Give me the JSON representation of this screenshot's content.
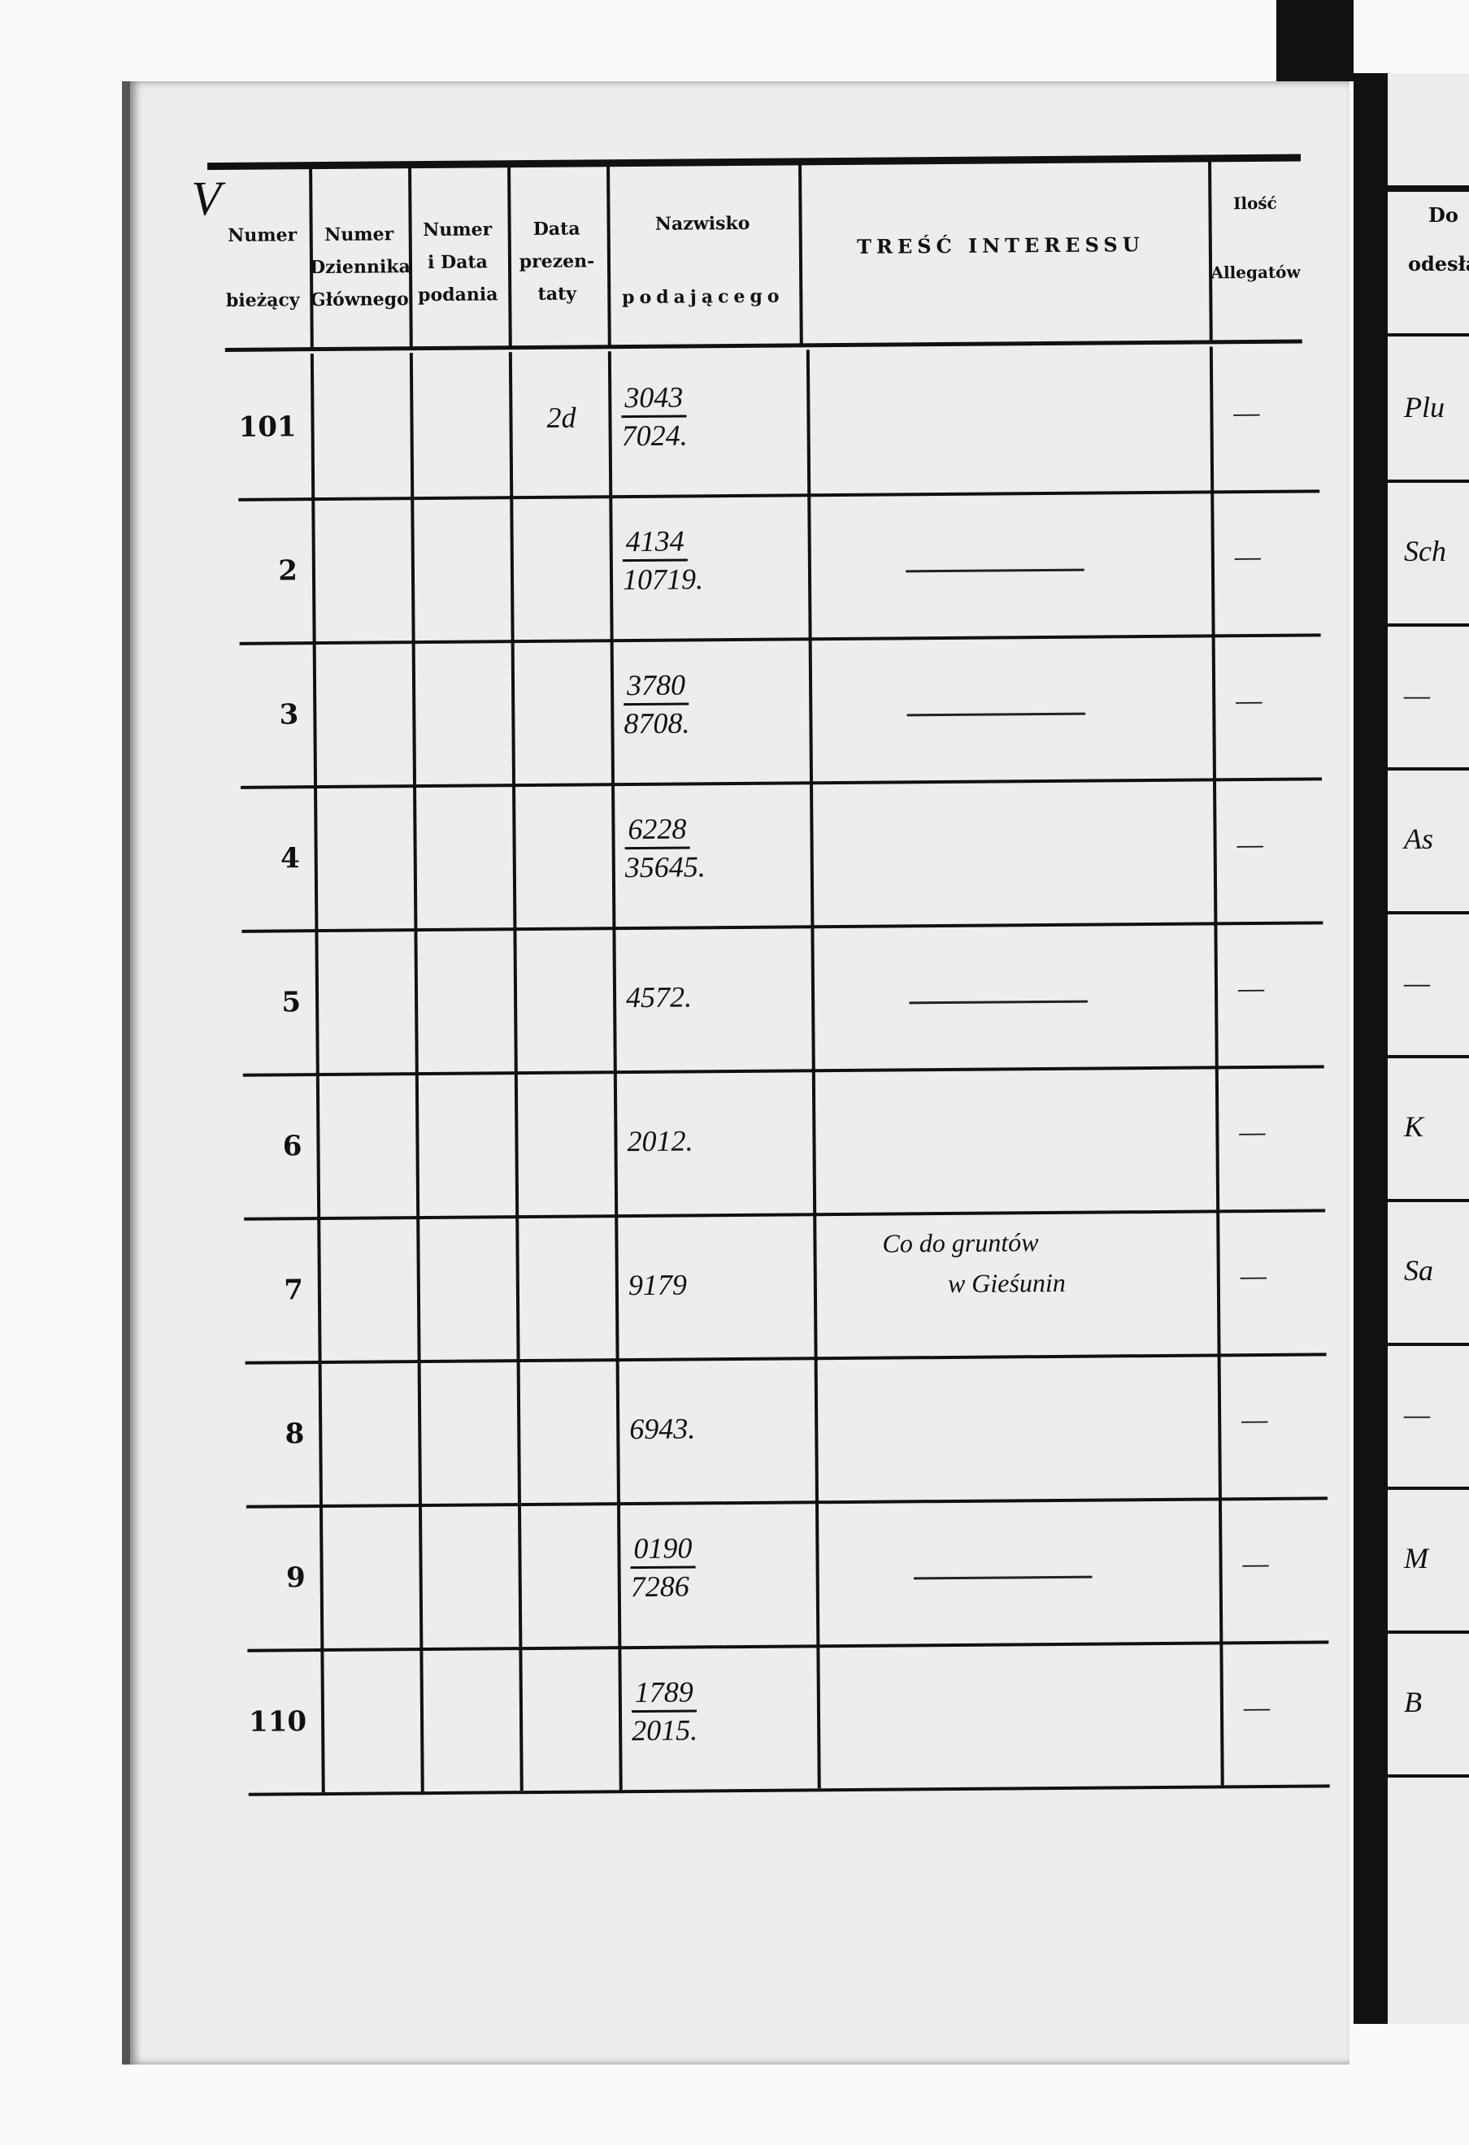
{
  "headers": {
    "numer_biezacy": [
      "Numer",
      "bieżący"
    ],
    "numer_dziennika": [
      "Numer",
      "Dziennika",
      "Głównego"
    ],
    "numer_data": [
      "Numer",
      "i Data",
      "podania"
    ],
    "data_prezentaty": [
      "Data",
      "prezen-",
      "taty"
    ],
    "nazwisko": [
      "Nazwisko",
      "podającego"
    ],
    "tresc": "TREŚĆ INTERESSU",
    "ilosc": [
      "Ilość",
      "Allegatów"
    ],
    "next_page": [
      "Do",
      "odesła"
    ]
  },
  "margin_mark": "V",
  "rows": [
    {
      "num": "101",
      "date": "2d",
      "top": "3043",
      "bottom": "7024.",
      "tresc": [],
      "tresc_dash": false,
      "alleg": "—",
      "next": "Plu"
    },
    {
      "num": "2",
      "date": "",
      "top": "4134",
      "bottom": "10719.",
      "tresc": [],
      "tresc_dash": true,
      "alleg": "—",
      "next": "Sch"
    },
    {
      "num": "3",
      "date": "",
      "top": "3780",
      "bottom": "8708.",
      "tresc": [],
      "tresc_dash": true,
      "alleg": "—",
      "next": "—"
    },
    {
      "num": "4",
      "date": "",
      "top": "6228",
      "bottom": "35645.",
      "tresc": [],
      "tresc_dash": false,
      "alleg": "—",
      "next": "As"
    },
    {
      "num": "5",
      "date": "",
      "top": "4572.",
      "bottom": "",
      "tresc": [],
      "tresc_dash": true,
      "alleg": "—",
      "next": "—"
    },
    {
      "num": "6",
      "date": "",
      "top": "2012.",
      "bottom": "",
      "tresc": [],
      "tresc_dash": false,
      "alleg": "—",
      "next": "K"
    },
    {
      "num": "7",
      "date": "",
      "top": "9179",
      "bottom": "",
      "tresc": [
        "Co do gruntów",
        "w Gieśunin"
      ],
      "tresc_dash": false,
      "alleg": "—",
      "next": "Sa"
    },
    {
      "num": "8",
      "date": "",
      "top": "6943.",
      "bottom": "",
      "tresc": [],
      "tresc_dash": false,
      "alleg": "—",
      "next": "—"
    },
    {
      "num": "9",
      "date": "",
      "top": "0190",
      "bottom": "7286",
      "tresc": [],
      "tresc_dash": true,
      "alleg": "—",
      "next": "M"
    },
    {
      "num": "110",
      "date": "",
      "top": "1789",
      "bottom": "2015.",
      "tresc": [],
      "tresc_dash": false,
      "alleg": "—",
      "next": "B"
    }
  ]
}
